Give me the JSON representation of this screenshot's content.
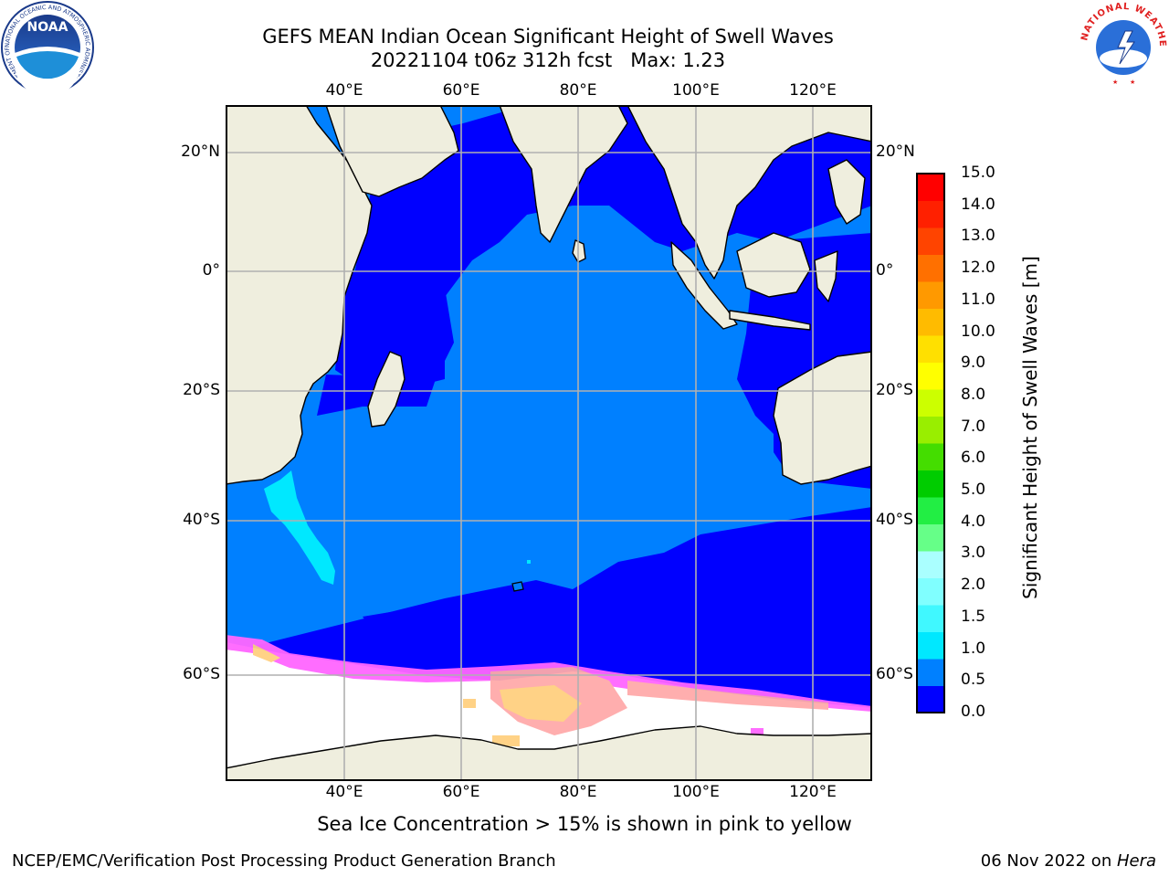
{
  "header": {
    "title_line1": "GEFS MEAN Indian Ocean Significant Height of Swell Waves",
    "title_line2": "20221104 t06z 312h fcst   Max: 1.23"
  },
  "map": {
    "lon_ticks": [
      "40°E",
      "60°E",
      "80°E",
      "100°E",
      "120°E"
    ],
    "lat_ticks": [
      "20°N",
      "0°",
      "20°S",
      "40°S",
      "60°S"
    ],
    "extent": {
      "lon": [
        20,
        129
      ],
      "lat": [
        27,
        -67
      ]
    },
    "colors": {
      "land": "#efeede",
      "sea_ice_area": "#ffffff",
      "grid": "#b0b0b0",
      "coast": "#000000"
    }
  },
  "colorbar": {
    "title": "Significant Height of Swell Waves [m]",
    "labels": [
      "15.0",
      "14.0",
      "13.0",
      "12.0",
      "11.0",
      "10.0",
      "9.0",
      "8.0",
      "7.0",
      "6.0",
      "5.0",
      "4.0",
      "3.0",
      "2.0",
      "1.5",
      "1.0",
      "0.5",
      "0.0"
    ],
    "colors_bottom_to_top": [
      "#0000ff",
      "#0080ff",
      "#00e8ff",
      "#40f8ff",
      "#80ffff",
      "#aaffff",
      "#66ff88",
      "#22ee44",
      "#00cc00",
      "#44dd00",
      "#99ee00",
      "#ccff00",
      "#ffff00",
      "#ffe000",
      "#ffbb00",
      "#ff9900",
      "#ff7000",
      "#ff4400",
      "#ff2000",
      "#ff0000"
    ]
  },
  "sea_ice_colors": [
    "#ff66ff",
    "#ffaaaa",
    "#ffd080"
  ],
  "footer": {
    "note": "Sea Ice Concentration > 15% is shown in pink to yellow",
    "credit": "NCEP/EMC/Verification Post Processing Product Generation Branch",
    "date": "06 Nov 2022 on ",
    "machine": "Hera"
  },
  "logos": {
    "noaa_text": "NOAA",
    "noaa_ring": "NATIONAL OCEANIC AND ATMOSPHERIC ADMINISTRATION · U.S. DEPARTMENT OF COMMERCE",
    "nws_ring": "NATIONAL WEATHER SERVICE"
  }
}
